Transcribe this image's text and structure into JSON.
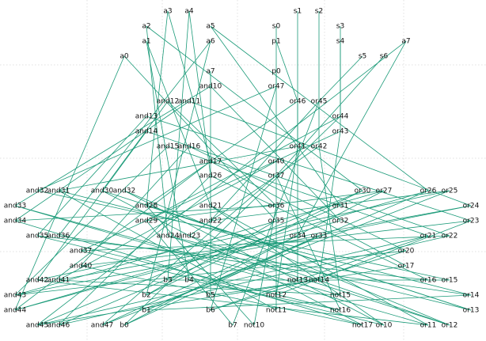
{
  "colors": {
    "edge": "#1a9a78",
    "label": "#111111",
    "grid": "#d6d6d6",
    "background": "#ffffff"
  },
  "nodes": [
    {
      "id": "a3",
      "label": "a3"
    },
    {
      "id": "a4",
      "label": "a4"
    },
    {
      "id": "s1",
      "label": "s1"
    },
    {
      "id": "s2",
      "label": "s2"
    },
    {
      "id": "a2",
      "label": "a2"
    },
    {
      "id": "a5",
      "label": "a5"
    },
    {
      "id": "s0",
      "label": "s0"
    },
    {
      "id": "s3",
      "label": "s3"
    },
    {
      "id": "a1",
      "label": "a1"
    },
    {
      "id": "a6",
      "label": "a6"
    },
    {
      "id": "p1",
      "label": "p1"
    },
    {
      "id": "s4",
      "label": "s4"
    },
    {
      "id": "a7",
      "label": "a7"
    },
    {
      "id": "a0",
      "label": "a0"
    },
    {
      "id": "s5",
      "label": "s5"
    },
    {
      "id": "s6",
      "label": "s6"
    },
    {
      "id": "a7b",
      "label": "a7"
    },
    {
      "id": "p0",
      "label": "p0"
    },
    {
      "id": "and10",
      "label": "and10"
    },
    {
      "id": "or47",
      "label": "or47"
    },
    {
      "id": "and12",
      "label": "and12"
    },
    {
      "id": "and11",
      "label": "and11"
    },
    {
      "id": "or46",
      "label": "or46"
    },
    {
      "id": "or45",
      "label": "or45"
    },
    {
      "id": "and13",
      "label": "and13"
    },
    {
      "id": "or44",
      "label": "or44"
    },
    {
      "id": "and14",
      "label": "and14"
    },
    {
      "id": "or43",
      "label": "or43"
    },
    {
      "id": "and15",
      "label": "and15"
    },
    {
      "id": "and16",
      "label": "and16"
    },
    {
      "id": "or41",
      "label": "or41"
    },
    {
      "id": "or42",
      "label": "or42"
    },
    {
      "id": "and17",
      "label": "and17"
    },
    {
      "id": "or40",
      "label": "or40"
    },
    {
      "id": "and26",
      "label": "and26"
    },
    {
      "id": "or37",
      "label": "or37"
    },
    {
      "id": "and32",
      "label": "and32"
    },
    {
      "id": "and31",
      "label": "and31"
    },
    {
      "id": "and30",
      "label": "and30"
    },
    {
      "id": "and32b",
      "label": "and32"
    },
    {
      "id": "or30",
      "label": "or30"
    },
    {
      "id": "or27",
      "label": "or27"
    },
    {
      "id": "or26",
      "label": "or26"
    },
    {
      "id": "or25",
      "label": "or25"
    },
    {
      "id": "and33",
      "label": "and33"
    },
    {
      "id": "and28",
      "label": "and28"
    },
    {
      "id": "and21",
      "label": "and21"
    },
    {
      "id": "or36",
      "label": "or36"
    },
    {
      "id": "or31",
      "label": "or31"
    },
    {
      "id": "or24",
      "label": "or24"
    },
    {
      "id": "and34",
      "label": "and34"
    },
    {
      "id": "and29",
      "label": "and29"
    },
    {
      "id": "and22",
      "label": "and22"
    },
    {
      "id": "or35",
      "label": "or35"
    },
    {
      "id": "or32",
      "label": "or32"
    },
    {
      "id": "or23",
      "label": "or23"
    },
    {
      "id": "and35",
      "label": "and35"
    },
    {
      "id": "and36",
      "label": "and36"
    },
    {
      "id": "and24",
      "label": "and24"
    },
    {
      "id": "and23",
      "label": "and23"
    },
    {
      "id": "or34",
      "label": "or34"
    },
    {
      "id": "or33",
      "label": "or33"
    },
    {
      "id": "or21",
      "label": "or21"
    },
    {
      "id": "or22",
      "label": "or22"
    },
    {
      "id": "and37",
      "label": "and37"
    },
    {
      "id": "or20",
      "label": "or20"
    },
    {
      "id": "and40",
      "label": "and40"
    },
    {
      "id": "or17",
      "label": "or17"
    },
    {
      "id": "and42",
      "label": "and42"
    },
    {
      "id": "and41",
      "label": "and41"
    },
    {
      "id": "b3",
      "label": "b3"
    },
    {
      "id": "b4",
      "label": "b4"
    },
    {
      "id": "not13",
      "label": "not13"
    },
    {
      "id": "not14",
      "label": "not14"
    },
    {
      "id": "or16",
      "label": "or16"
    },
    {
      "id": "or15",
      "label": "or15"
    },
    {
      "id": "and43",
      "label": "and43"
    },
    {
      "id": "b2",
      "label": "b2"
    },
    {
      "id": "b5",
      "label": "b5"
    },
    {
      "id": "not12",
      "label": "not12"
    },
    {
      "id": "not15",
      "label": "not15"
    },
    {
      "id": "or14",
      "label": "or14"
    },
    {
      "id": "and44",
      "label": "and44"
    },
    {
      "id": "b1",
      "label": "b1"
    },
    {
      "id": "b6",
      "label": "b6"
    },
    {
      "id": "not11",
      "label": "not11"
    },
    {
      "id": "not16",
      "label": "not16"
    },
    {
      "id": "or13",
      "label": "or13"
    },
    {
      "id": "and45",
      "label": "and45"
    },
    {
      "id": "and46",
      "label": "and46"
    },
    {
      "id": "and47",
      "label": "and47"
    },
    {
      "id": "b0",
      "label": "b0"
    },
    {
      "id": "b7",
      "label": "b7"
    },
    {
      "id": "not10",
      "label": "not10"
    },
    {
      "id": "not17",
      "label": "not17"
    },
    {
      "id": "or10",
      "label": "or10"
    },
    {
      "id": "or11",
      "label": "or11"
    },
    {
      "id": "or12",
      "label": "or12"
    }
  ],
  "edges": [
    [
      "a3",
      "and17"
    ],
    [
      "a3",
      "and28"
    ],
    [
      "a4",
      "and26"
    ],
    [
      "a4",
      "b3"
    ],
    [
      "a2",
      "or30"
    ],
    [
      "a2",
      "and24"
    ],
    [
      "a5",
      "or31"
    ],
    [
      "a5",
      "or26"
    ],
    [
      "a1",
      "and21"
    ],
    [
      "a1",
      "b4"
    ],
    [
      "a6",
      "and36"
    ],
    [
      "a6",
      "b2"
    ],
    [
      "a0",
      "or35"
    ],
    [
      "a0",
      "and44"
    ],
    [
      "a7",
      "and45"
    ],
    [
      "a7",
      "or34"
    ],
    [
      "s0",
      "or40"
    ],
    [
      "s1",
      "or41"
    ],
    [
      "s2",
      "or42"
    ],
    [
      "s3",
      "or43"
    ],
    [
      "s4",
      "or44"
    ],
    [
      "p0",
      "or47"
    ],
    [
      "p1",
      "or46"
    ],
    [
      "s5",
      "or45"
    ],
    [
      "s6",
      "or37"
    ],
    [
      "a7b",
      "and10"
    ],
    [
      "a7b",
      "b5"
    ],
    [
      "and10",
      "and33"
    ],
    [
      "and10",
      "or32"
    ],
    [
      "or47",
      "and32"
    ],
    [
      "or47",
      "b6"
    ],
    [
      "and12",
      "and30"
    ],
    [
      "and12",
      "or36"
    ],
    [
      "and11",
      "and34"
    ],
    [
      "and11",
      "or24"
    ],
    [
      "or46",
      "and28"
    ],
    [
      "or46",
      "not13"
    ],
    [
      "or45",
      "and22"
    ],
    [
      "or45",
      "b7"
    ],
    [
      "and13",
      "and35"
    ],
    [
      "and13",
      "or23"
    ],
    [
      "or44",
      "and29"
    ],
    [
      "or44",
      "b0"
    ],
    [
      "and14",
      "and42"
    ],
    [
      "and14",
      "or22"
    ],
    [
      "or43",
      "and37"
    ],
    [
      "or43",
      "not14"
    ],
    [
      "and15",
      "and43"
    ],
    [
      "and15",
      "or21"
    ],
    [
      "and16",
      "and40"
    ],
    [
      "and16",
      "or20"
    ],
    [
      "or41",
      "and31"
    ],
    [
      "or41",
      "not12"
    ],
    [
      "or42",
      "and23"
    ],
    [
      "or42",
      "not15"
    ],
    [
      "and17",
      "and44"
    ],
    [
      "and17",
      "or17"
    ],
    [
      "or40",
      "and41"
    ],
    [
      "or40",
      "not11"
    ],
    [
      "and26",
      "and46"
    ],
    [
      "and26",
      "or16"
    ],
    [
      "or37",
      "and47"
    ],
    [
      "or37",
      "not16"
    ],
    [
      "and32",
      "or15"
    ],
    [
      "and31",
      "or14"
    ],
    [
      "and30",
      "or13"
    ],
    [
      "and32b",
      "or12"
    ],
    [
      "or30",
      "and45"
    ],
    [
      "or27",
      "and43"
    ],
    [
      "or26",
      "b1"
    ],
    [
      "or25",
      "and42"
    ],
    [
      "and33",
      "or11"
    ],
    [
      "and28",
      "not10"
    ],
    [
      "and21",
      "or10"
    ],
    [
      "or36",
      "and34"
    ],
    [
      "or31",
      "and46"
    ],
    [
      "or24",
      "and41"
    ],
    [
      "and34",
      "not17"
    ],
    [
      "and29",
      "or27"
    ],
    [
      "and22",
      "or25"
    ],
    [
      "or35",
      "b2"
    ],
    [
      "or32",
      "and44"
    ],
    [
      "or23",
      "and40"
    ],
    [
      "and35",
      "or16"
    ],
    [
      "and36",
      "or14"
    ],
    [
      "and24",
      "or13"
    ],
    [
      "and23",
      "or12"
    ],
    [
      "or34",
      "and47"
    ],
    [
      "or33",
      "b0"
    ],
    [
      "or21",
      "b6"
    ],
    [
      "or22",
      "and37"
    ],
    [
      "and37",
      "or10"
    ],
    [
      "or20",
      "and43"
    ],
    [
      "and40",
      "not17"
    ],
    [
      "or17",
      "and45"
    ],
    [
      "and42",
      "or11"
    ],
    [
      "and41",
      "not15"
    ],
    [
      "b3",
      "or15"
    ],
    [
      "b4",
      "not16"
    ],
    [
      "and43",
      "or24"
    ],
    [
      "b2",
      "or30"
    ],
    [
      "b5",
      "not14"
    ],
    [
      "not12",
      "or23"
    ],
    [
      "not15",
      "and33"
    ],
    [
      "or14",
      "b1"
    ],
    [
      "and44",
      "or26"
    ],
    [
      "b1",
      "or33"
    ],
    [
      "b6",
      "or20"
    ],
    [
      "not11",
      "and31"
    ],
    [
      "not16",
      "and35"
    ],
    [
      "or13",
      "and28"
    ],
    [
      "and45",
      "or21"
    ],
    [
      "and46",
      "or22"
    ],
    [
      "and47",
      "or25"
    ],
    [
      "b0",
      "or27"
    ],
    [
      "b7",
      "and29"
    ],
    [
      "not10",
      "or36"
    ],
    [
      "not17",
      "and30"
    ],
    [
      "or10",
      "and32b"
    ],
    [
      "or11",
      "and21"
    ],
    [
      "or12",
      "and24"
    ]
  ]
}
